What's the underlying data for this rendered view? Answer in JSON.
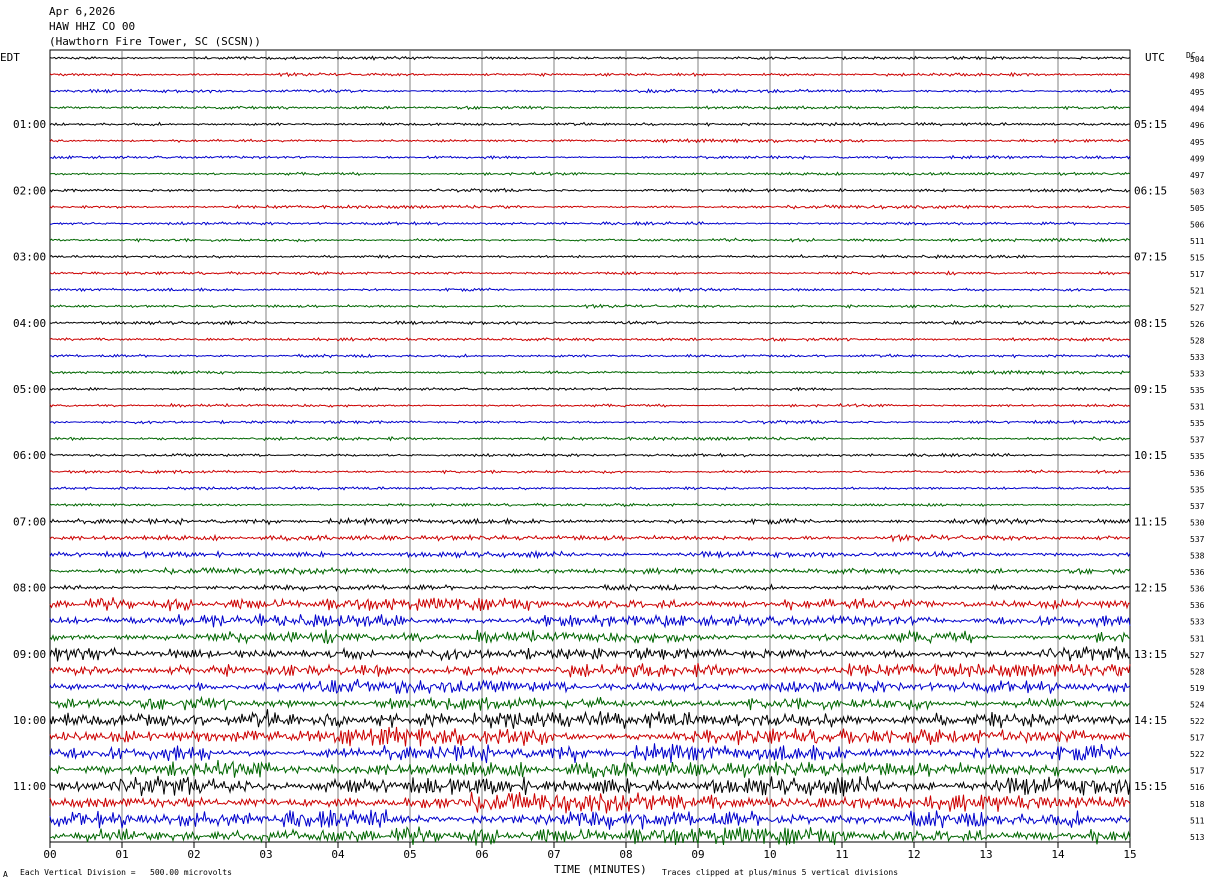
{
  "header": {
    "date": "Apr 6,2026",
    "channel": "HAW HHZ CO 00",
    "station": "(Hawthorn Fire Tower, SC (SCSN))"
  },
  "left_tz": "EDT",
  "right_tz": "UTC",
  "dc_label": "DC",
  "footer": {
    "scale": "Each Vertical Division =   500.00 microvolts",
    "clip": "Traces clipped at plus/minus 5 vertical divisions",
    "mark": "A"
  },
  "colors": [
    "#000000",
    "#cc0000",
    "#0000cc",
    "#006600"
  ],
  "chart_data": {
    "type": "line",
    "title": "",
    "xlabel": "TIME (MINUTES)",
    "ylabel": "",
    "x_ticks": [
      "00",
      "01",
      "02",
      "03",
      "04",
      "05",
      "06",
      "07",
      "08",
      "09",
      "10",
      "11",
      "12",
      "13",
      "14",
      "15"
    ],
    "xlim": [
      0,
      15
    ],
    "grid": true,
    "rows_per_hour": 4,
    "left_hour_labels": [
      "01:00",
      "02:00",
      "03:00",
      "04:00",
      "05:00",
      "06:00",
      "07:00",
      "08:00",
      "09:00",
      "10:00",
      "11:00"
    ],
    "right_hour_labels": [
      "05:15",
      "06:15",
      "07:15",
      "08:15",
      "09:15",
      "10:15",
      "11:15",
      "12:15",
      "13:15",
      "14:15",
      "15:15"
    ],
    "dc_offsets": [
      504,
      498,
      495,
      494,
      496,
      495,
      499,
      497,
      503,
      505,
      506,
      511,
      515,
      517,
      521,
      527,
      526,
      528,
      533,
      533,
      535,
      531,
      535,
      537,
      535,
      536,
      535,
      537,
      530,
      537,
      538,
      536,
      536,
      536,
      533,
      531,
      527,
      528,
      519,
      524,
      522,
      517,
      522,
      517,
      516,
      518,
      511,
      513
    ],
    "amplitude_level": [
      1,
      1,
      1,
      1,
      1,
      1,
      1,
      1,
      1,
      1,
      1,
      1,
      1,
      1,
      1,
      1,
      1,
      1,
      1,
      1,
      1,
      1,
      1,
      1,
      1,
      1,
      1,
      1,
      2,
      2,
      2,
      2,
      2,
      3,
      3,
      3,
      3,
      3,
      3,
      3,
      4,
      4,
      4,
      4,
      4,
      4,
      4,
      4
    ]
  }
}
